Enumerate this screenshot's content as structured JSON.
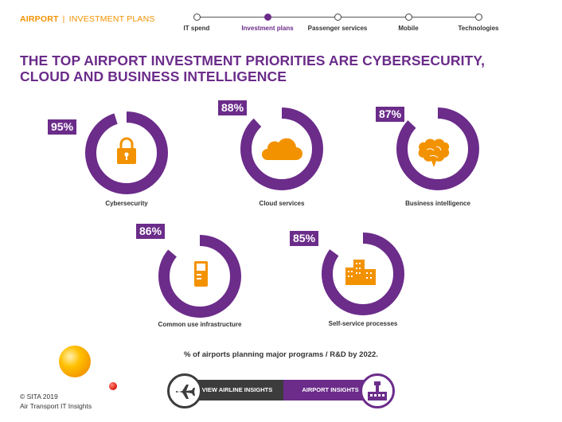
{
  "header": {
    "section": "AIRPORT",
    "separator": "|",
    "subsection": "INVESTMENT PLANS"
  },
  "nav": {
    "items": [
      {
        "label": "IT spend",
        "active": false
      },
      {
        "label": "Investment plans",
        "active": true
      },
      {
        "label": "Passenger services",
        "active": false
      },
      {
        "label": "Mobile",
        "active": false
      },
      {
        "label": "Technologies",
        "active": false
      }
    ]
  },
  "headline": {
    "line1": "THE TOP AIRPORT INVESTMENT PRIORITIES ARE CYBERSECURITY,",
    "line2": "CLOUD AND BUSINESS INTELLIGENCE"
  },
  "chart_data": {
    "type": "pie",
    "subtype": "donut",
    "unit": "%",
    "categories": [
      "Cybersecurity",
      "Cloud services",
      "Business intelligence",
      "Common use infrastructure",
      "Self-service processes"
    ],
    "values": [
      95,
      88,
      87,
      86,
      85
    ],
    "value_labels": [
      "95%",
      "88%",
      "87%",
      "86%",
      "85%"
    ],
    "icons": [
      "padlock-icon",
      "cloud-icon",
      "brain-icon",
      "kiosk-icon",
      "buildings-icon"
    ],
    "caption": "% of airports planning major programs / R&D by 2022."
  },
  "buttons": {
    "airline": "VIEW AIRLINE INSIGHTS",
    "airport": "AIRPORT INSIGHTS"
  },
  "footer": {
    "copyright": "© SITA 2019",
    "publication": "Air Transport IT Insights"
  },
  "colors": {
    "purple": "#6b2c8a",
    "orange": "#f39200",
    "dark": "#3c3c3c"
  }
}
